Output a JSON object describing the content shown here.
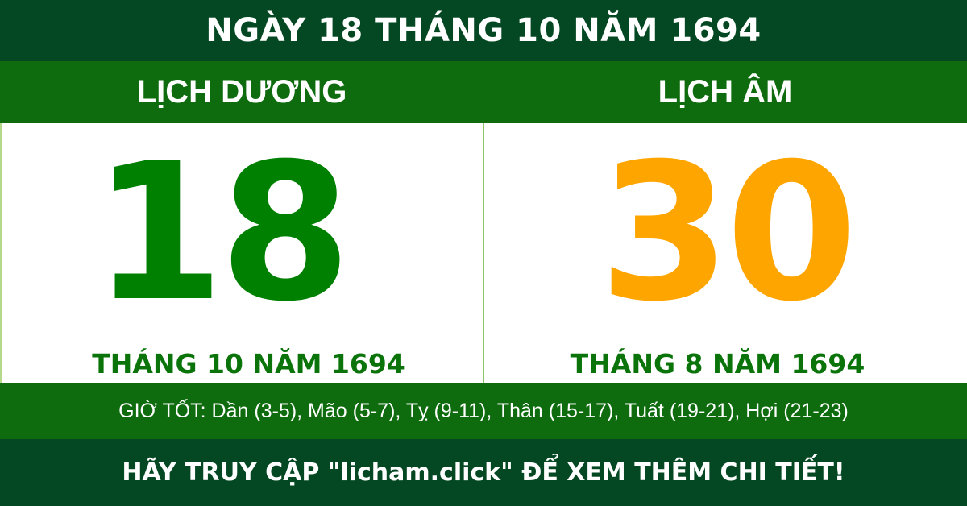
{
  "header": {
    "title": "NGÀY 18 THÁNG 10 NĂM 1694"
  },
  "solar": {
    "label": "LỊCH DƯƠNG",
    "day": "18",
    "month_year": "THÁNG 10 NĂM 1694"
  },
  "lunar": {
    "label": "LỊCH ÂM",
    "day": "30",
    "month_year": "THÁNG 8 NĂM 1694"
  },
  "good_hours": {
    "text": "GIỜ TỐT: Dần (3-5), Mão (5-7), Tỵ (9-11), Thân (15-17), Tuất (19-21), Hợi (21-23)"
  },
  "footer": {
    "text": "HÃY TRUY CẬP \"licham.click\" ĐỂ XEM THÊM CHI TIẾT!"
  },
  "colors": {
    "dark_green": "#034822",
    "band_green": "#0e6b0e",
    "solar_day": "#008000",
    "lunar_day": "#ffa500"
  }
}
